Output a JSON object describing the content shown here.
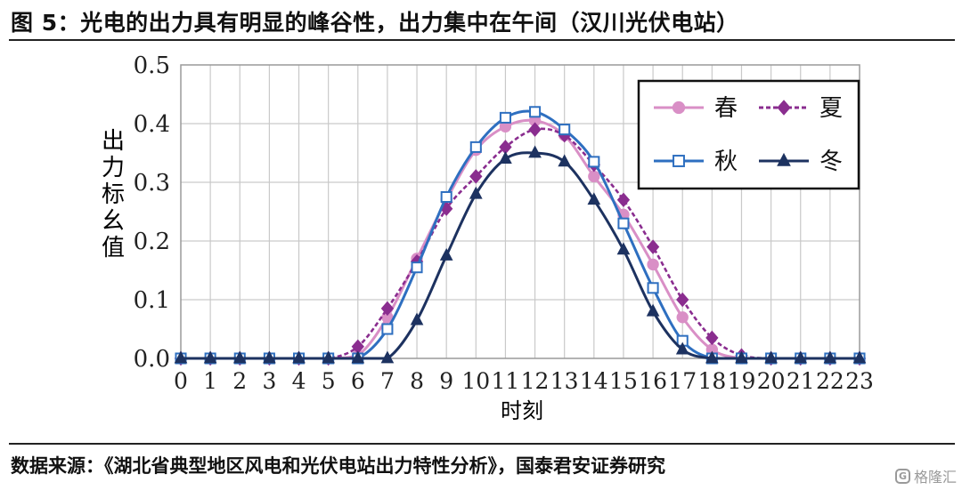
{
  "header": {
    "title": "图 5：光电的出力具有明显的峰谷性，出力集中在午间（汉川光伏电站）"
  },
  "footer": {
    "source": "数据来源：《湖北省典型地区风电和光伏电站出力特性分析》，国泰君安证券研究",
    "watermark_badge": "G",
    "watermark_text": "格隆汇"
  },
  "chart_data": {
    "type": "line",
    "title": "",
    "xlabel": "时刻",
    "ylabel": "出力标幺值",
    "x": [
      0,
      1,
      2,
      3,
      4,
      5,
      6,
      7,
      8,
      9,
      10,
      11,
      12,
      13,
      14,
      15,
      16,
      17,
      18,
      19,
      20,
      21,
      22,
      23
    ],
    "xlim": [
      0,
      23
    ],
    "ylim": [
      0,
      0.5
    ],
    "yticks": [
      "0.0",
      "0.1",
      "0.2",
      "0.3",
      "0.4",
      "0.5"
    ],
    "grid": true,
    "legend_position": "top-right",
    "series": [
      {
        "name": "春",
        "color": "#d98fc6",
        "marker": "circle",
        "dashed": false,
        "values": [
          0,
          0,
          0,
          0,
          0,
          0,
          0.005,
          0.07,
          0.17,
          0.27,
          0.355,
          0.395,
          0.405,
          0.38,
          0.31,
          0.245,
          0.16,
          0.07,
          0.015,
          0,
          0,
          0,
          0,
          0
        ]
      },
      {
        "name": "夏",
        "color": "#8a2d8f",
        "marker": "diamond",
        "dashed": true,
        "values": [
          0,
          0,
          0,
          0,
          0,
          0,
          0.02,
          0.085,
          0.165,
          0.255,
          0.31,
          0.36,
          0.39,
          0.38,
          0.33,
          0.27,
          0.19,
          0.1,
          0.035,
          0.005,
          0,
          0,
          0,
          0
        ]
      },
      {
        "name": "秋",
        "color": "#2e6fc0",
        "marker": "square-open",
        "dashed": false,
        "values": [
          0,
          0,
          0,
          0,
          0,
          0,
          0,
          0.05,
          0.155,
          0.275,
          0.36,
          0.41,
          0.42,
          0.39,
          0.335,
          0.23,
          0.12,
          0.03,
          0,
          0,
          0,
          0,
          0,
          0
        ]
      },
      {
        "name": "冬",
        "color": "#1d3260",
        "marker": "triangle",
        "dashed": false,
        "values": [
          0,
          0,
          0,
          0,
          0,
          0,
          0,
          0,
          0.065,
          0.175,
          0.28,
          0.34,
          0.35,
          0.335,
          0.27,
          0.185,
          0.08,
          0.015,
          0,
          0,
          0,
          0,
          0,
          0
        ]
      }
    ]
  }
}
